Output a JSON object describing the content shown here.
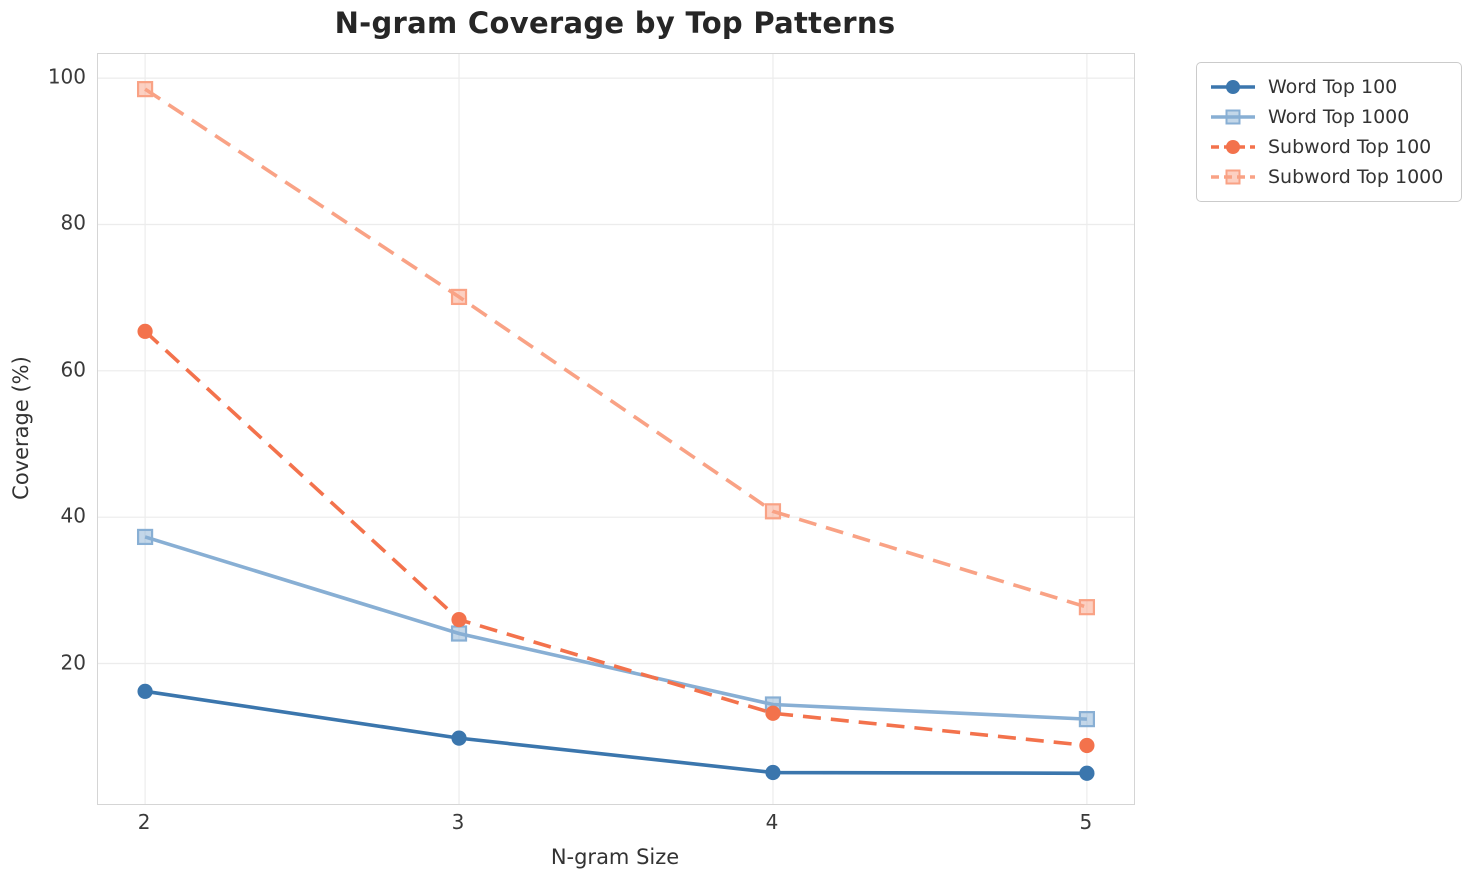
{
  "title": "N-gram Coverage by Top Patterns",
  "chart_data": {
    "type": "line",
    "title": "N-gram Coverage by Top Patterns",
    "xlabel": "N-gram Size",
    "ylabel": "Coverage (%)",
    "x": [
      2,
      3,
      4,
      5
    ],
    "x_ticks": [
      2,
      3,
      4,
      5
    ],
    "y_ticks": [
      20,
      40,
      60,
      80,
      100
    ],
    "xlim": [
      1.85,
      5.15
    ],
    "ylim": [
      0.8,
      103.3
    ],
    "grid": true,
    "grid_color": "#ececec",
    "spine_color": "#d5d5d5",
    "legend_position": "outside-top-right",
    "series": [
      {
        "name": "Word Top 100",
        "color": "#3b76ad",
        "linestyle": "solid",
        "marker": "circle",
        "values": [
          16.2,
          9.8,
          5.1,
          5.0
        ]
      },
      {
        "name": "Word Top 1000",
        "color": "#88afd4",
        "linestyle": "solid",
        "marker": "square",
        "values": [
          37.3,
          24.1,
          14.4,
          12.4
        ]
      },
      {
        "name": "Subword Top 100",
        "color": "#f3724c",
        "linestyle": "dashed",
        "marker": "circle",
        "values": [
          65.4,
          26.0,
          13.2,
          8.8
        ]
      },
      {
        "name": "Subword Top 1000",
        "color": "#f9a285",
        "linestyle": "dashed",
        "marker": "square",
        "values": [
          98.5,
          70.1,
          40.8,
          27.7
        ]
      }
    ]
  }
}
